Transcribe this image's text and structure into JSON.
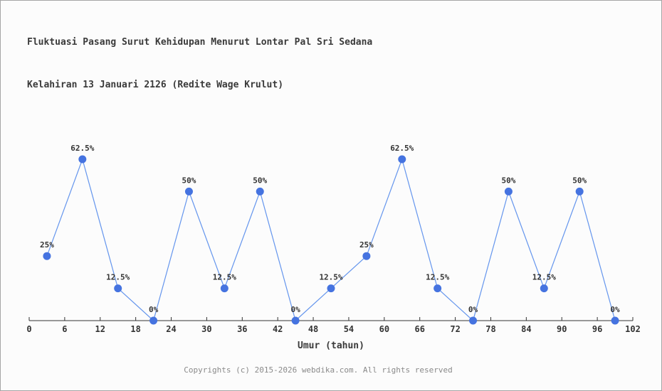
{
  "page": {
    "title_line1": "Fluktuasi Pasang Surut Kehidupan Menurut Lontar Pal Sri Sedana",
    "title_line2": "Kelahiran 13 Januari 2126 (Redite Wage Krulut)",
    "footer": "Copyrights (c) 2015-2026 webdika.com. All rights reserved"
  },
  "chart_data": {
    "type": "line",
    "title": "Fluktuasi Pasang Surut Kehidupan Menurut Lontar Pal Sri Sedana Kelahiran 13 Januari 2126 (Redite Wage Krulut)",
    "xlabel": "Umur (tahun)",
    "ylabel": "",
    "x": [
      3,
      9,
      15,
      21,
      27,
      33,
      39,
      45,
      51,
      57,
      63,
      69,
      75,
      81,
      87,
      93,
      99
    ],
    "values": [
      25,
      62.5,
      12.5,
      0,
      50,
      12.5,
      50,
      0,
      12.5,
      25,
      62.5,
      12.5,
      0,
      50,
      12.5,
      50,
      0
    ],
    "point_labels": [
      "25%",
      "62.5%",
      "12.5%",
      "0%",
      "50%",
      "12.5%",
      "50%",
      "0%",
      "12.5%",
      "25%",
      "62.5%",
      "12.5%",
      "0%",
      "50%",
      "12.5%",
      "50%",
      "0%"
    ],
    "x_ticks": [
      0,
      6,
      12,
      18,
      24,
      30,
      36,
      42,
      48,
      54,
      60,
      66,
      72,
      78,
      84,
      90,
      96,
      102
    ],
    "xlim": [
      0,
      102
    ],
    "ylim": [
      0,
      62.5
    ],
    "grid": false,
    "legend_position": "none",
    "colors": {
      "line": "#6495ed",
      "marker": "#4573e0",
      "axis": "#333333",
      "tick_label": "#333333",
      "point_label": "#333333",
      "xlabel_text": "#3a3a3a",
      "title_text": "#3a3a3a",
      "footer_text": "#8a8a8a",
      "background": "#fcfcfc",
      "border": "#a6a6a6"
    }
  }
}
